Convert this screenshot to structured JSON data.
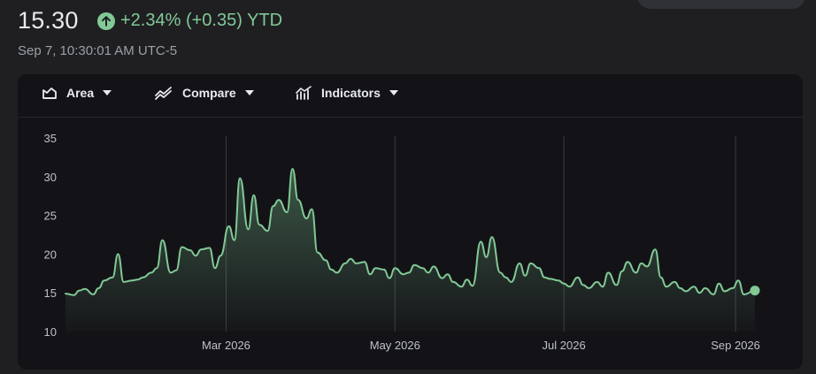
{
  "quote": {
    "price": "15.30",
    "change": "+2.34% (+0.35) YTD",
    "timestamp": "Sep 7, 10:30:01 AM UTC-5"
  },
  "toolbar": {
    "area_label": "Area",
    "compare_label": "Compare",
    "indicators_label": "Indicators"
  },
  "colors": {
    "accent": "#81c995",
    "background": "#1f1f22",
    "chart_bg": "#131317"
  },
  "icons": [
    "arrow-up-icon",
    "area-chart-icon",
    "compare-icon",
    "indicators-icon",
    "caret-down-icon"
  ],
  "chart_data": {
    "type": "area",
    "title": "",
    "xlabel": "",
    "ylabel": "",
    "ylim": [
      10,
      35
    ],
    "y_ticks": [
      35,
      30,
      25,
      20,
      15,
      10
    ],
    "x_range": [
      "2026-01-02",
      "2026-09-08"
    ],
    "x_ticks": [
      {
        "date": "2026-03-01",
        "label": "Mar 2026"
      },
      {
        "date": "2026-05-01",
        "label": "May 2026"
      },
      {
        "date": "2026-07-01",
        "label": "Jul 2026"
      },
      {
        "date": "2026-09-01",
        "label": "Sep 2026"
      }
    ],
    "grid": "vertical at x ticks",
    "series": [
      {
        "x": [
          "2026-01-02",
          "2026-01-05",
          "2026-01-07",
          "2026-01-09",
          "2026-01-12",
          "2026-01-14",
          "2026-01-16",
          "2026-01-19",
          "2026-01-21",
          "2026-01-23",
          "2026-01-26",
          "2026-01-28",
          "2026-01-30",
          "2026-02-02",
          "2026-02-04",
          "2026-02-06",
          "2026-02-09",
          "2026-02-11",
          "2026-02-13",
          "2026-02-16",
          "2026-02-18",
          "2026-02-20",
          "2026-02-23",
          "2026-02-25",
          "2026-02-27",
          "2026-03-02",
          "2026-03-04",
          "2026-03-06",
          "2026-03-09",
          "2026-03-11",
          "2026-03-13",
          "2026-03-16",
          "2026-03-18",
          "2026-03-20",
          "2026-03-23",
          "2026-03-25",
          "2026-03-27",
          "2026-03-30",
          "2026-04-01",
          "2026-04-03",
          "2026-04-06",
          "2026-04-08",
          "2026-04-10",
          "2026-04-13",
          "2026-04-15",
          "2026-04-17",
          "2026-04-20",
          "2026-04-22",
          "2026-04-24",
          "2026-04-27",
          "2026-04-29",
          "2026-05-01",
          "2026-05-04",
          "2026-05-06",
          "2026-05-08",
          "2026-05-11",
          "2026-05-13",
          "2026-05-15",
          "2026-05-18",
          "2026-05-20",
          "2026-05-22",
          "2026-05-25",
          "2026-05-27",
          "2026-05-29",
          "2026-06-01",
          "2026-06-03",
          "2026-06-05",
          "2026-06-08",
          "2026-06-10",
          "2026-06-12",
          "2026-06-15",
          "2026-06-17",
          "2026-06-19",
          "2026-06-22",
          "2026-06-24",
          "2026-06-26",
          "2026-06-29",
          "2026-07-01",
          "2026-07-03",
          "2026-07-06",
          "2026-07-08",
          "2026-07-10",
          "2026-07-13",
          "2026-07-15",
          "2026-07-17",
          "2026-07-20",
          "2026-07-22",
          "2026-07-24",
          "2026-07-27",
          "2026-07-29",
          "2026-07-31",
          "2026-08-03",
          "2026-08-05",
          "2026-08-07",
          "2026-08-10",
          "2026-08-12",
          "2026-08-14",
          "2026-08-17",
          "2026-08-19",
          "2026-08-21",
          "2026-08-24",
          "2026-08-26",
          "2026-08-28",
          "2026-08-31",
          "2026-09-02",
          "2026-09-04",
          "2026-09-08"
        ],
        "values": [
          14.9,
          14.7,
          15.3,
          15.5,
          14.8,
          15.6,
          16.6,
          17.0,
          20.0,
          16.4,
          16.6,
          16.7,
          17.0,
          17.6,
          18.2,
          21.8,
          17.6,
          17.9,
          20.9,
          20.5,
          19.8,
          20.6,
          20.8,
          18.2,
          19.8,
          23.6,
          21.8,
          29.8,
          23.2,
          27.6,
          23.8,
          23.0,
          26.2,
          27.0,
          25.4,
          31.0,
          27.0,
          24.6,
          25.8,
          20.2,
          19.2,
          18.0,
          17.6,
          18.8,
          19.4,
          18.8,
          19.0,
          17.4,
          18.2,
          18.0,
          16.9,
          18.2,
          17.4,
          17.6,
          18.6,
          18.2,
          17.6,
          18.4,
          16.9,
          17.4,
          16.4,
          15.8,
          16.7,
          15.9,
          21.6,
          19.6,
          22.2,
          17.6,
          17.0,
          16.4,
          18.8,
          17.2,
          18.8,
          18.2,
          17.0,
          16.8,
          16.6,
          16.2,
          15.8,
          17.0,
          16.0,
          15.6,
          16.4,
          15.8,
          17.6,
          16.0,
          17.8,
          19.0,
          17.6,
          18.8,
          18.4,
          20.6,
          17.0,
          15.8,
          16.4,
          15.6,
          15.2,
          15.8,
          15.0,
          15.6,
          14.8,
          16.2,
          15.2,
          15.6,
          16.6,
          14.8,
          15.3
        ]
      }
    ]
  }
}
